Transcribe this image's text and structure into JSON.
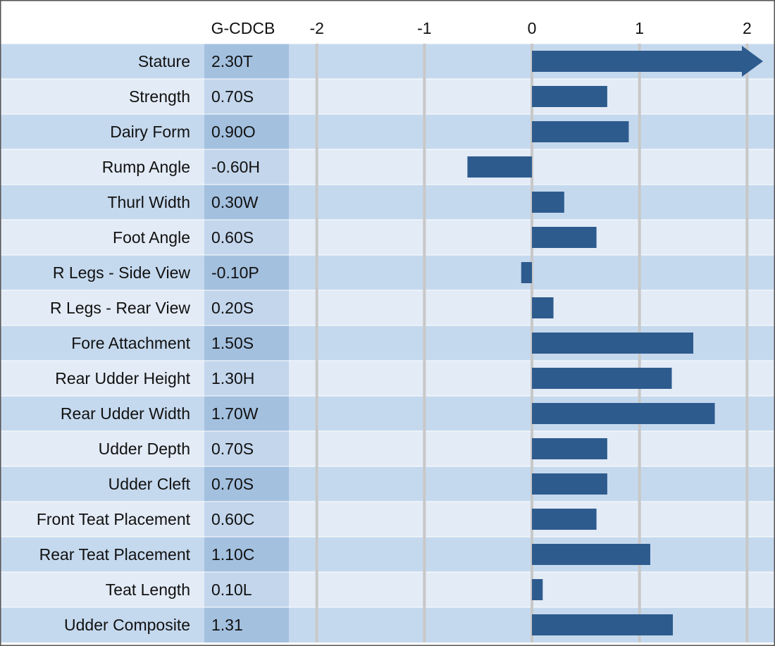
{
  "chart_data": {
    "type": "bar",
    "orientation": "horizontal",
    "column_header": "G-CDCB",
    "categories": [
      "Stature",
      "Strength",
      "Dairy Form",
      "Rump Angle",
      "Thurl Width",
      "Foot Angle",
      "R Legs - Side View",
      "R Legs - Rear View",
      "Fore Attachment",
      "Rear Udder Height",
      "Rear Udder Width",
      "Udder Depth",
      "Udder Cleft",
      "Front Teat Placement",
      "Rear Teat Placement",
      "Teat Length",
      "Udder Composite"
    ],
    "values": [
      2.3,
      0.7,
      0.9,
      -0.6,
      0.3,
      0.6,
      -0.1,
      0.2,
      1.5,
      1.3,
      1.7,
      0.7,
      0.7,
      0.6,
      1.1,
      0.1,
      1.31
    ],
    "value_labels": [
      "2.30T",
      "0.70S",
      "0.90O",
      "-0.60H",
      "0.30W",
      "0.60S",
      "-0.10P",
      "0.20S",
      "1.50S",
      "1.30H",
      "1.70W",
      "0.70S",
      "0.70S",
      "0.60C",
      "1.10C",
      "0.10L",
      "1.31"
    ],
    "color": "#2e5b8e",
    "xlim": [
      -2.26,
      2.24
    ],
    "xticks": [
      -2,
      -1,
      0,
      1,
      2
    ],
    "grid": true
  }
}
